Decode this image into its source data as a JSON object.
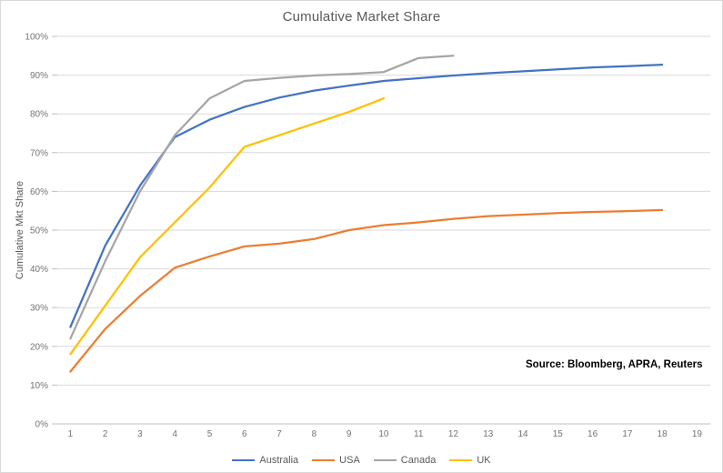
{
  "chart_data": {
    "type": "line",
    "title": "Cumulative Market Share",
    "xlabel": "",
    "ylabel": "Cumulative Mkt Share",
    "annotation": "Source: Bloomberg, APRA, Reuters",
    "x": [
      1,
      2,
      3,
      4,
      5,
      6,
      7,
      8,
      9,
      10,
      11,
      12,
      13,
      14,
      15,
      16,
      17,
      18,
      19
    ],
    "xlim": [
      1,
      19
    ],
    "ylim": [
      0,
      100
    ],
    "y_tick_step": 10,
    "y_tick_format": "percent",
    "grid": "horizontal",
    "legend_position": "bottom",
    "series": [
      {
        "name": "Australia",
        "color": "#4472C4",
        "x_start": 1,
        "values": [
          25,
          46,
          61.5,
          74,
          78.5,
          81.8,
          84.2,
          86,
          87.3,
          88.5,
          89.2,
          89.9,
          90.5,
          91,
          91.5,
          92,
          92.3,
          92.7
        ]
      },
      {
        "name": "USA",
        "color": "#ED7D31",
        "x_start": 1,
        "values": [
          13.5,
          24.5,
          33,
          40.3,
          43.2,
          45.8,
          46.5,
          47.7,
          50,
          51.3,
          52,
          52.9,
          53.6,
          54,
          54.4,
          54.7,
          54.9,
          55.2
        ]
      },
      {
        "name": "Canada",
        "color": "#A5A5A5",
        "x_start": 1,
        "values": [
          22,
          42,
          60,
          74.5,
          84,
          88.5,
          89.3,
          89.9,
          90.3,
          90.8,
          94.4,
          95
        ]
      },
      {
        "name": "UK",
        "color": "#FFC000",
        "x_start": 1,
        "values": [
          18,
          30.5,
          43,
          52,
          61,
          71.5,
          74.5,
          77.5,
          80.5,
          84
        ]
      }
    ],
    "colors": {
      "gridline": "#D9D9D9",
      "axis_line": "#BFBFBF",
      "tick_label": "#737373",
      "title_text": "#595959",
      "source_text": "#000000"
    }
  }
}
